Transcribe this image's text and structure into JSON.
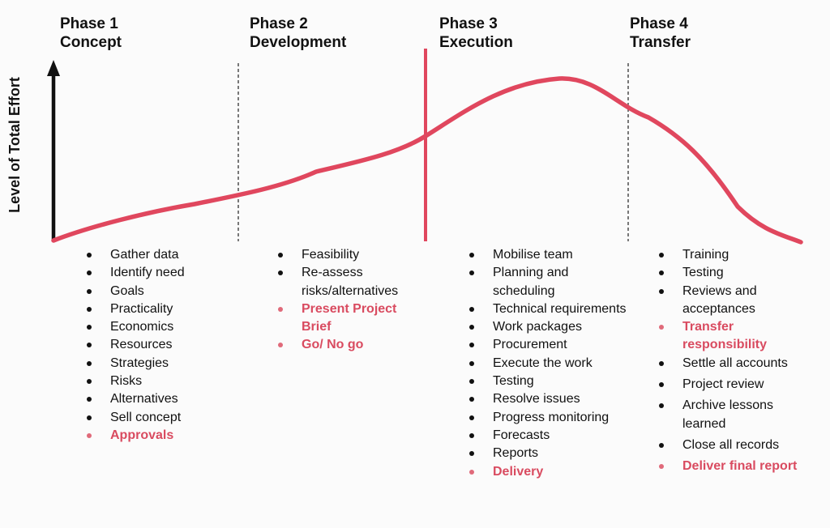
{
  "diagram": {
    "y_axis_label": "Level of Total Effort",
    "colors": {
      "curve": "#e0475e",
      "highlight": "#d94b60",
      "axis": "#111111"
    }
  },
  "phases": [
    {
      "line1": "Phase 1",
      "line2": "Concept",
      "tasks": [
        {
          "text": "Gather data"
        },
        {
          "text": "Identify need"
        },
        {
          "text": "Goals"
        },
        {
          "text": "Practicality"
        },
        {
          "text": "Economics"
        },
        {
          "text": "Resources"
        },
        {
          "text": "Strategies"
        },
        {
          "text": "Risks"
        },
        {
          "text": "Alternatives"
        },
        {
          "text": "Sell concept"
        },
        {
          "text": "Approvals",
          "highlight": true
        }
      ]
    },
    {
      "line1": "Phase 2",
      "line2": "Development",
      "tasks": [
        {
          "text": "Feasibility"
        },
        {
          "text": "Re-assess risks/alternatives"
        },
        {
          "text": "Present Project Brief",
          "highlight": true
        },
        {
          "text": "Go/ No go",
          "highlight": true
        }
      ]
    },
    {
      "line1": "Phase 3",
      "line2": "Execution",
      "tasks": [
        {
          "text": "Mobilise team"
        },
        {
          "text": "Planning and scheduling"
        },
        {
          "text": "Technical requirements"
        },
        {
          "text": "Work packages"
        },
        {
          "text": "Procurement"
        },
        {
          "text": "Execute the work"
        },
        {
          "text": "Testing"
        },
        {
          "text": "Resolve issues"
        },
        {
          "text": "Progress monitoring"
        },
        {
          "text": "Forecasts"
        },
        {
          "text": "Reports"
        },
        {
          "text": "Delivery",
          "highlight": true
        }
      ]
    },
    {
      "line1": "Phase 4",
      "line2": "Transfer",
      "tasks": [
        {
          "text": "Training"
        },
        {
          "text": "Testing"
        },
        {
          "text": "Reviews and acceptances"
        },
        {
          "text": "Transfer responsibility",
          "highlight": true
        },
        {
          "text": "Settle all accounts"
        },
        {
          "text": "Project review"
        },
        {
          "text": "Archive lessons learned"
        },
        {
          "text": "Close all records"
        },
        {
          "text": "Deliver final report",
          "highlight": true
        }
      ]
    }
  ]
}
